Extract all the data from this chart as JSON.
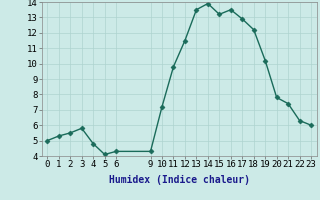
{
  "x": [
    0,
    1,
    2,
    3,
    4,
    5,
    6,
    9,
    10,
    11,
    12,
    13,
    14,
    15,
    16,
    17,
    18,
    19,
    20,
    21,
    22,
    23
  ],
  "y": [
    5.0,
    5.3,
    5.5,
    5.8,
    4.8,
    4.1,
    4.3,
    4.3,
    7.2,
    9.8,
    11.5,
    13.5,
    13.9,
    13.2,
    13.5,
    12.9,
    12.2,
    10.2,
    7.8,
    7.4,
    6.3,
    6.0
  ],
  "line_color": "#1a6b5a",
  "marker": "D",
  "marker_size": 2.5,
  "bg_color": "#cceae7",
  "grid_color": "#aed4d0",
  "xlabel": "Humidex (Indice chaleur)",
  "ylim": [
    4,
    14
  ],
  "xlim": [
    -0.5,
    23.5
  ],
  "yticks": [
    4,
    5,
    6,
    7,
    8,
    9,
    10,
    11,
    12,
    13,
    14
  ],
  "xticks": [
    0,
    1,
    2,
    3,
    4,
    5,
    6,
    9,
    10,
    11,
    12,
    13,
    14,
    15,
    16,
    17,
    18,
    19,
    20,
    21,
    22,
    23
  ],
  "xlabel_fontsize": 7,
  "tick_fontsize": 6.5,
  "xlabel_color": "#1a1a8c",
  "line_width": 1.0
}
